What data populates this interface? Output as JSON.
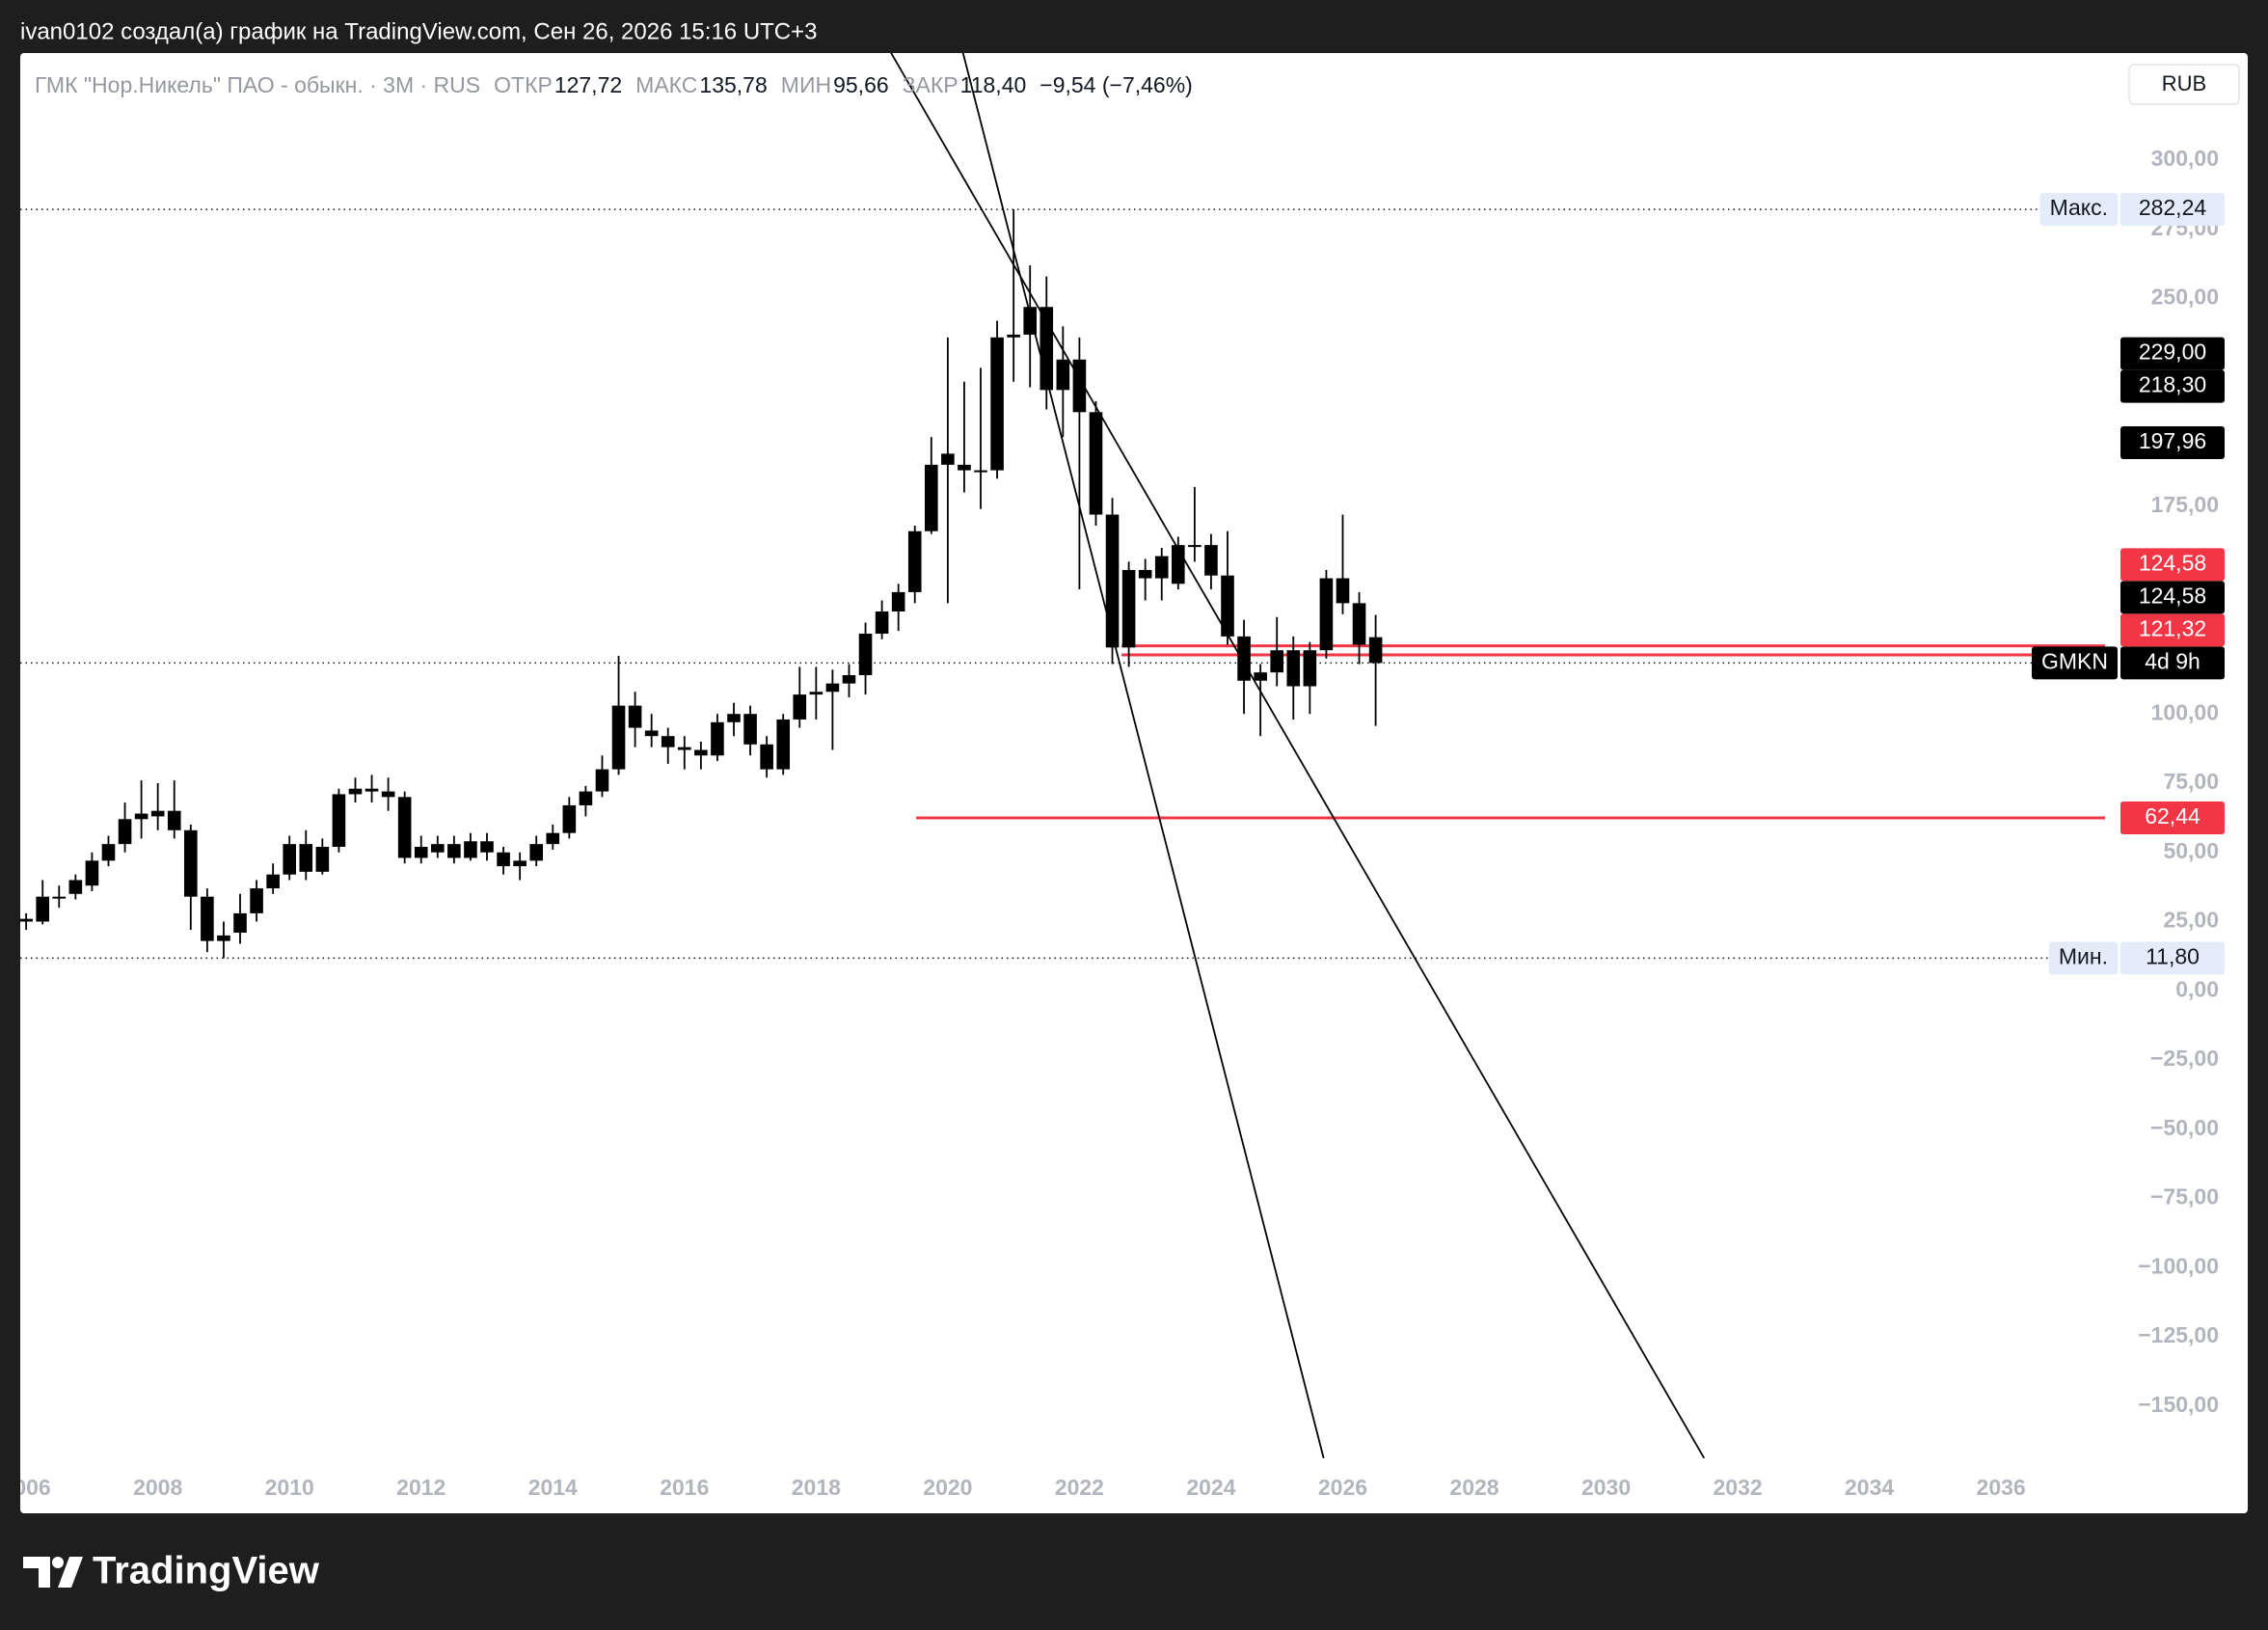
{
  "header": "ivan0102 создал(а) график на TradingView.com, Сен 26, 2026 15:16 UTC+3",
  "footer": {
    "brand": "TradingView"
  },
  "chart_data": {
    "type": "candlestick",
    "title": "ГМК \"Нор.Никель\" ПАО - обыкн. · 3M · RUS",
    "legend_items": [
      {
        "name": "ОТКР",
        "text": "127,72"
      },
      {
        "name": "МАКС",
        "text": "135,78"
      },
      {
        "name": "МИН",
        "text": "95,66"
      },
      {
        "name": "ЗАКР",
        "text": "118,40"
      }
    ],
    "change": "−9,54 (−7,46%)",
    "currency": "RUB",
    "color": "#000000",
    "x": [
      2006,
      2006.25,
      2006.5,
      2006.75,
      2007,
      2007.25,
      2007.5,
      2007.75,
      2008,
      2008.25,
      2008.5,
      2008.75,
      2009,
      2009.25,
      2009.5,
      2009.75,
      2010,
      2010.25,
      2010.5,
      2010.75,
      2011,
      2011.25,
      2011.5,
      2011.75,
      2012,
      2012.25,
      2012.5,
      2012.75,
      2013,
      2013.25,
      2013.5,
      2013.75,
      2014,
      2014.25,
      2014.5,
      2014.75,
      2015,
      2015.25,
      2015.5,
      2015.75,
      2016,
      2016.25,
      2016.5,
      2016.75,
      2017,
      2017.25,
      2017.5,
      2017.75,
      2018,
      2018.25,
      2018.5,
      2018.75,
      2019,
      2019.25,
      2019.5,
      2019.75,
      2020,
      2020.25,
      2020.5,
      2020.75,
      2021,
      2021.25,
      2021.5,
      2021.75,
      2022,
      2022.25,
      2022.5,
      2022.75,
      2023,
      2023.25,
      2023.5,
      2023.75,
      2024,
      2024.25,
      2024.5,
      2024.75,
      2025,
      2025.25,
      2025.5,
      2025.75,
      2026,
      2026.25,
      2026.5
    ],
    "open": [
      25,
      25,
      34,
      35,
      38,
      47,
      53,
      62,
      63,
      65,
      58,
      34,
      18,
      21,
      28,
      37,
      42,
      53,
      43,
      52,
      71,
      73,
      72,
      70,
      48,
      50,
      53,
      48,
      54,
      50,
      45,
      47,
      53,
      57,
      67,
      72,
      80,
      103,
      94,
      92,
      88,
      87,
      85,
      97,
      100,
      89,
      80,
      98,
      107,
      108,
      111,
      114,
      129,
      137,
      144,
      166,
      190,
      190,
      188,
      188,
      236,
      237,
      247,
      217,
      228,
      209,
      172,
      124,
      152,
      149,
      147,
      161,
      161,
      150,
      128,
      112,
      115,
      123,
      110,
      123,
      149,
      140,
      127.72
    ],
    "high": [
      28,
      40,
      38,
      42,
      50,
      56,
      68,
      76,
      75,
      76,
      60,
      37,
      25,
      35,
      40,
      46,
      56,
      58,
      55,
      73,
      77,
      78,
      77,
      72,
      56,
      56,
      56,
      57,
      57,
      52,
      50,
      56,
      60,
      70,
      74,
      85,
      121,
      108,
      100,
      95,
      92,
      90,
      100,
      104,
      103,
      92,
      100,
      117,
      117,
      116,
      118,
      133,
      141,
      147,
      168,
      200,
      236,
      220,
      225,
      242,
      282.24,
      262,
      258,
      240,
      236,
      213,
      178,
      155,
      156,
      160,
      164,
      182,
      165,
      166,
      134,
      118,
      135,
      128,
      126,
      152,
      172,
      144,
      135.78
    ],
    "low": [
      22,
      24,
      30,
      33,
      36,
      45,
      50,
      55,
      58,
      55,
      22,
      14,
      11.8,
      17,
      25,
      35,
      40,
      40,
      42,
      50,
      68,
      68,
      65,
      46,
      46,
      48,
      46,
      47,
      47,
      42,
      40,
      45,
      51,
      55,
      63,
      70,
      78,
      88,
      88,
      82,
      80,
      80,
      83,
      92,
      85,
      77,
      78,
      95,
      98,
      87,
      106,
      107,
      127,
      130,
      140,
      165,
      140,
      180,
      174,
      185,
      220,
      218,
      210,
      200,
      145,
      168,
      118,
      117,
      141,
      141,
      145,
      155,
      145,
      125,
      100,
      92,
      110,
      98,
      100,
      120,
      136,
      118,
      95.66
    ],
    "close": [
      26,
      34,
      34,
      40,
      47,
      53,
      62,
      64,
      65,
      58,
      34,
      18,
      20,
      28,
      37,
      42,
      53,
      43,
      52,
      71,
      73,
      72,
      70,
      48,
      52,
      53,
      48,
      54,
      50,
      45,
      47,
      53,
      57,
      67,
      72,
      80,
      103,
      95,
      92,
      88,
      87,
      85,
      97,
      100,
      89,
      80,
      98,
      107,
      108,
      111,
      114,
      129,
      137,
      144,
      166,
      190,
      194,
      188,
      188,
      236,
      237,
      247,
      217,
      228,
      209,
      172,
      124,
      152,
      149,
      157,
      161,
      161,
      150,
      128,
      112,
      115,
      123,
      110,
      123,
      149,
      140,
      125,
      118.4
    ],
    "xlim": [
      2005.91,
      2037.58
    ],
    "xticks": [
      2006,
      2008,
      2010,
      2012,
      2014,
      2016,
      2018,
      2020,
      2022,
      2024,
      2026,
      2028,
      2030,
      2032,
      2034,
      2036
    ],
    "ylim": [
      -169.9,
      338.7
    ],
    "yticks": [
      {
        "value": 300,
        "label": "300,00"
      },
      {
        "value": 275,
        "label": "275,00"
      },
      {
        "value": 250,
        "label": "250,00"
      },
      {
        "value": 175,
        "label": "175,00"
      },
      {
        "value": 100,
        "label": "100,00"
      },
      {
        "value": 75,
        "label": "75,00"
      },
      {
        "value": 50,
        "label": "50,00"
      },
      {
        "value": 25,
        "label": "25,00"
      },
      {
        "value": 0,
        "label": "0,00"
      },
      {
        "value": -25,
        "label": "−25,00"
      },
      {
        "value": -50,
        "label": "−50,00"
      },
      {
        "value": -75,
        "label": "−75,00"
      },
      {
        "value": -100,
        "label": "−100,00"
      },
      {
        "value": -125,
        "label": "−125,00"
      },
      {
        "value": -150,
        "label": "−150,00"
      }
    ],
    "dotted_levels": [
      282.24,
      118.4,
      11.8
    ],
    "horizontal_lines": [
      {
        "x_start": 2022.64,
        "value": 124.58,
        "color": "#f23645"
      },
      {
        "x_start": 2022.64,
        "value": 121.32,
        "color": "#f23645"
      },
      {
        "x_start": 2019.52,
        "value": 62.44,
        "color": "#f23645"
      }
    ],
    "trend_lines": [
      {
        "x": [
          2020.22,
          2025.71
        ],
        "y": [
          339.8,
          -168.8
        ],
        "color": "#000000"
      },
      {
        "x": [
          2019.05,
          2031.49
        ],
        "y": [
          342.4,
          -168.8
        ],
        "color": "#000000"
      }
    ],
    "price_labels": [
      {
        "caption": "Макс.",
        "value": 282.24,
        "label": "282,24",
        "style": "light"
      },
      {
        "value": 229,
        "label": "229,00",
        "style": "dark"
      },
      {
        "value": 218.3,
        "label": "218,30",
        "style": "dark"
      },
      {
        "value": 197.96,
        "label": "197,96",
        "style": "dark"
      },
      {
        "value": 124.58,
        "label": "124,58",
        "style": "red"
      },
      {
        "value": 124.58,
        "label": "124,58",
        "style": "dark"
      },
      {
        "value": 121.32,
        "label": "121,32",
        "style": "red"
      },
      {
        "caption": "GMKN",
        "label": "4d 9h",
        "style": "dark"
      },
      {
        "value": 62.44,
        "label": "62,44",
        "style": "red"
      },
      {
        "caption": "Мин.",
        "value": 11.8,
        "label": "11,80",
        "style": "light"
      }
    ]
  }
}
